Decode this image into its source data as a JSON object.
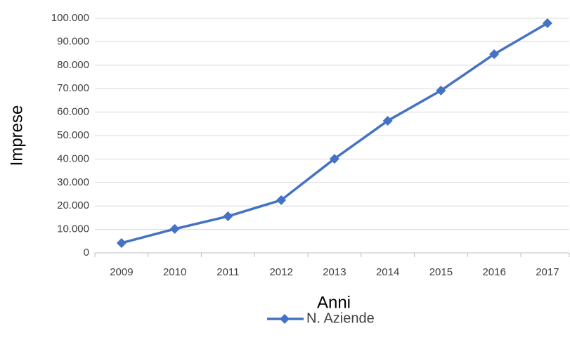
{
  "chart_data": {
    "type": "line",
    "x_label": "Anni",
    "y_label": "Imprese",
    "categories": [
      "2009",
      "2010",
      "2011",
      "2012",
      "2013",
      "2014",
      "2015",
      "2016",
      "2017"
    ],
    "series": [
      {
        "name": "N. Aziende",
        "color": "#4472c4",
        "values": [
          4200,
          10200,
          15600,
          22500,
          40100,
          56300,
          69200,
          84700,
          97900
        ]
      }
    ],
    "ylim": [
      0,
      100000
    ],
    "yticks": [
      0,
      {
        "value": 10000,
        "label": "10.000"
      },
      {
        "value": 20000,
        "label": "20.000"
      },
      {
        "value": 30000,
        "label": "30.000"
      },
      {
        "value": 40000,
        "label": "40.000"
      },
      {
        "value": 50000,
        "label": "50.000"
      },
      {
        "value": 60000,
        "label": "60.000"
      },
      {
        "value": 70000,
        "label": "70.000"
      },
      {
        "value": 80000,
        "label": "80.000"
      },
      {
        "value": 90000,
        "label": "90.000"
      },
      {
        "value": 100000,
        "label": "100.000"
      }
    ],
    "grid": true,
    "legend": "bottom"
  }
}
